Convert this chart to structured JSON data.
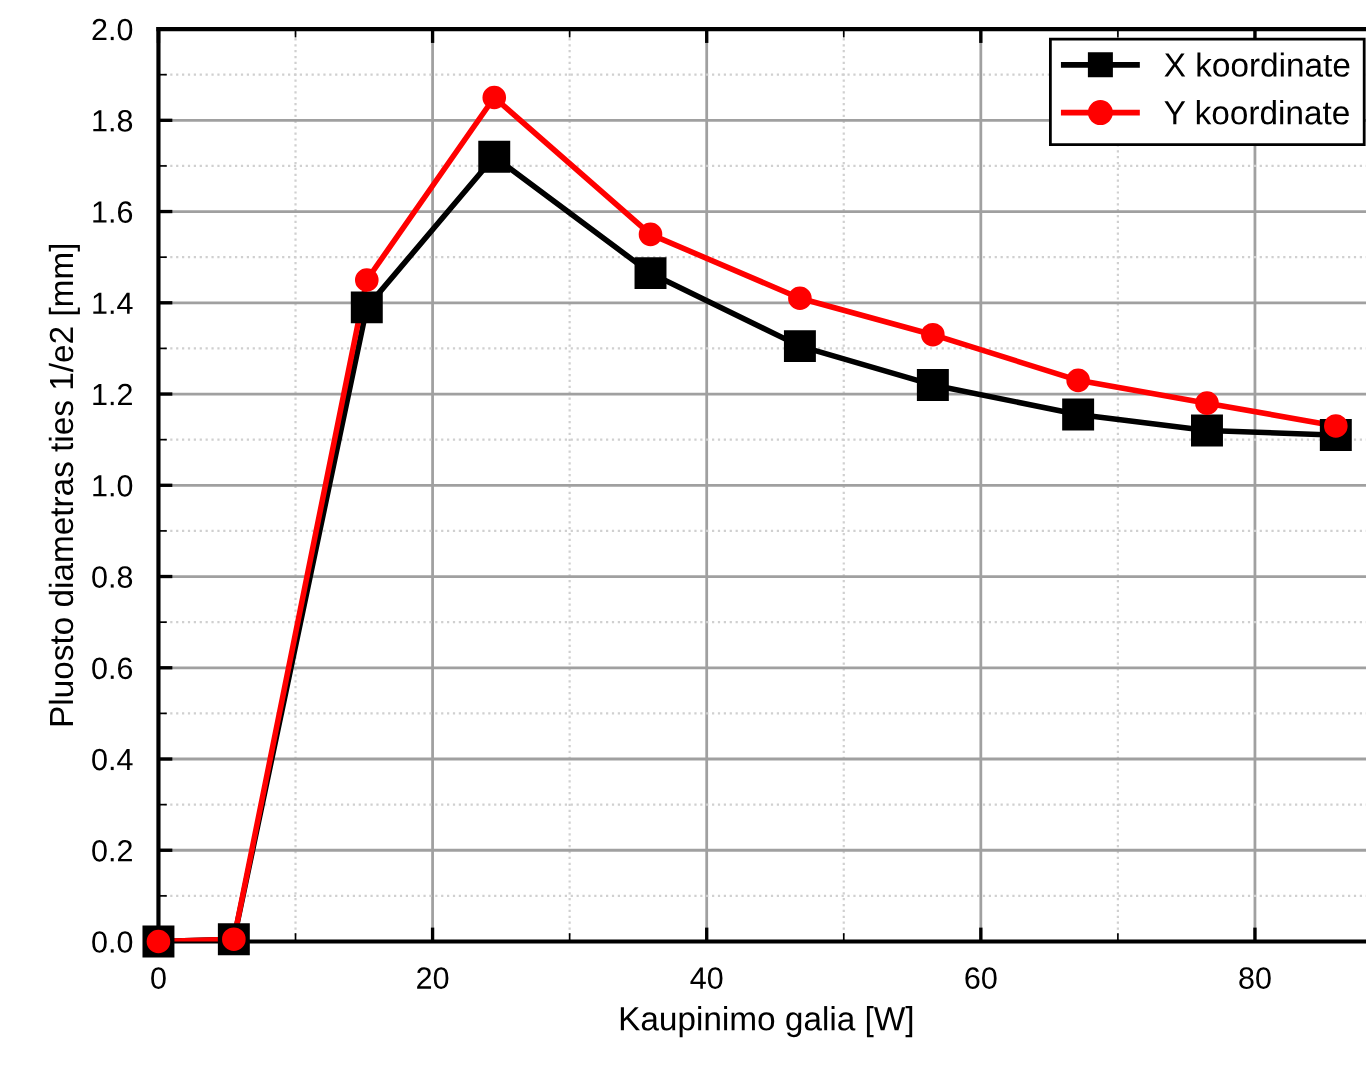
{
  "chart_data": {
    "type": "line",
    "xlabel": "Kaupinimo galia [W]",
    "ylabel": "Pluosto diametras ties 1/e2 [mm]",
    "x": [
      0,
      5.5,
      15.2,
      24.5,
      35.9,
      46.8,
      56.5,
      67.1,
      76.5,
      85.9
    ],
    "series": [
      {
        "name": "X koordinate",
        "color": "#000000",
        "marker": "square",
        "values": [
          0,
          0.005,
          1.39,
          1.72,
          1.465,
          1.305,
          1.22,
          1.155,
          1.12,
          1.11
        ]
      },
      {
        "name": "Y koordinate",
        "color": "#ff0000",
        "marker": "circle",
        "values": [
          0,
          0.005,
          1.45,
          1.85,
          1.55,
          1.41,
          1.33,
          1.23,
          1.18,
          1.13
        ]
      }
    ],
    "xlim": [
      0,
      88.7
    ],
    "ylim": [
      0,
      2.0
    ],
    "xticks": [
      0,
      20,
      40,
      60,
      80
    ],
    "yticks": [
      {
        "value": 0,
        "label": "0.0"
      },
      0.2,
      0.4,
      0.6,
      0.8,
      {
        "value": 1,
        "label": "1.0"
      },
      1.2,
      1.4,
      1.6,
      1.8,
      {
        "value": 2,
        "label": "2.0"
      }
    ],
    "grid": true,
    "legend": "top right",
    "line_style": "solid"
  }
}
